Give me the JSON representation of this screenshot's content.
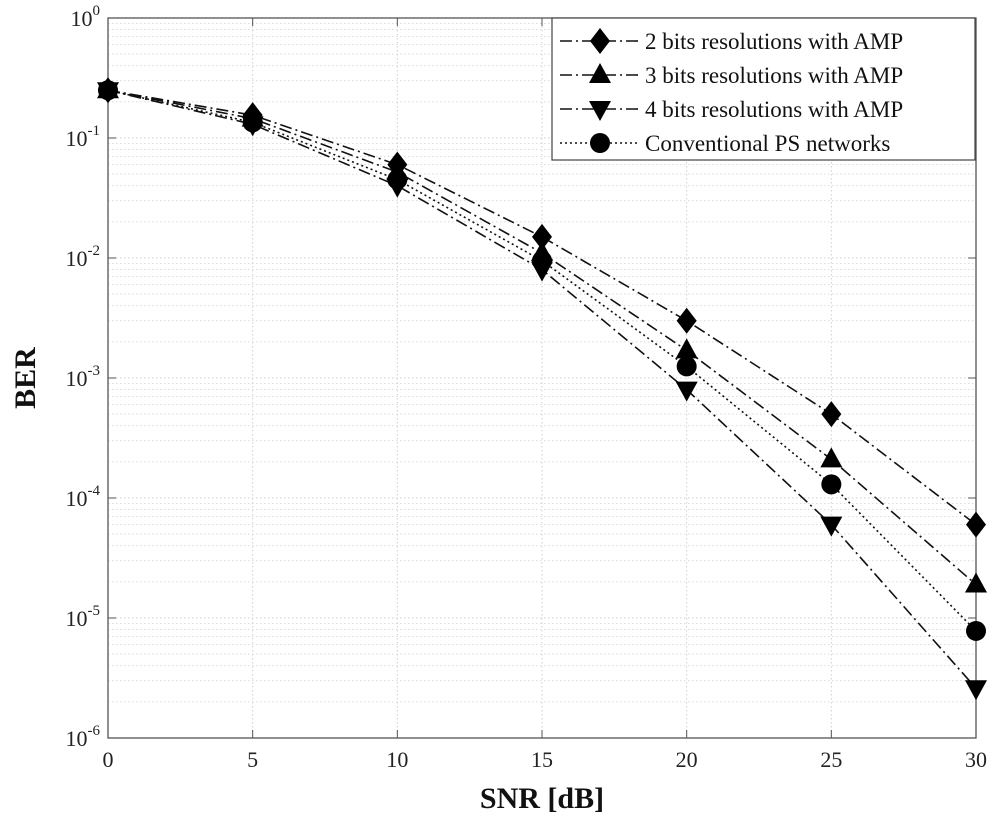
{
  "chart_data": {
    "type": "line",
    "title": "",
    "xlabel": "SNR [dB]",
    "ylabel": "BER",
    "yscale": "log",
    "xlim": [
      0,
      30
    ],
    "ylim": [
      1e-06,
      1
    ],
    "grid": true,
    "legend_position": "top-right",
    "x": [
      0,
      5,
      10,
      15,
      20,
      25,
      30
    ],
    "x_ticks": [
      0,
      5,
      10,
      15,
      20,
      25,
      30
    ],
    "y_ticks": [
      {
        "base": "10",
        "exp": "0",
        "value": 1
      },
      {
        "base": "10",
        "exp": "-1",
        "value": 0.1
      },
      {
        "base": "10",
        "exp": "-2",
        "value": 0.01
      },
      {
        "base": "10",
        "exp": "-3",
        "value": 0.001
      },
      {
        "base": "10",
        "exp": "-4",
        "value": 0.0001
      },
      {
        "base": "10",
        "exp": "-5",
        "value": 1e-05
      },
      {
        "base": "10",
        "exp": "-6",
        "value": 1e-06
      }
    ],
    "series": [
      {
        "name": "2 bits resolutions with AMP",
        "marker": "diamond",
        "line_style": "dashdot",
        "values": [
          0.25,
          0.155,
          0.06,
          0.015,
          0.003,
          0.0005,
          6e-05
        ]
      },
      {
        "name": "3 bits resolutions with AMP",
        "marker": "triangle-up",
        "line_style": "dashdot",
        "values": [
          0.25,
          0.145,
          0.052,
          0.011,
          0.0017,
          0.00021,
          1.9e-05
        ]
      },
      {
        "name": "4 bits resolutions with AMP",
        "marker": "triangle-down",
        "line_style": "dashdot",
        "values": [
          0.25,
          0.13,
          0.04,
          0.008,
          0.0008,
          6e-05,
          2.6e-06
        ]
      },
      {
        "name": "Conventional PS networks",
        "marker": "circle",
        "line_style": "dotted",
        "values": [
          0.25,
          0.135,
          0.045,
          0.0095,
          0.00125,
          0.00013,
          7.8e-06
        ]
      }
    ]
  },
  "colors": {
    "line": "#111111",
    "marker": "#000000",
    "grid": "#cfcfcf",
    "axis": "#555555",
    "background": "#ffffff"
  }
}
